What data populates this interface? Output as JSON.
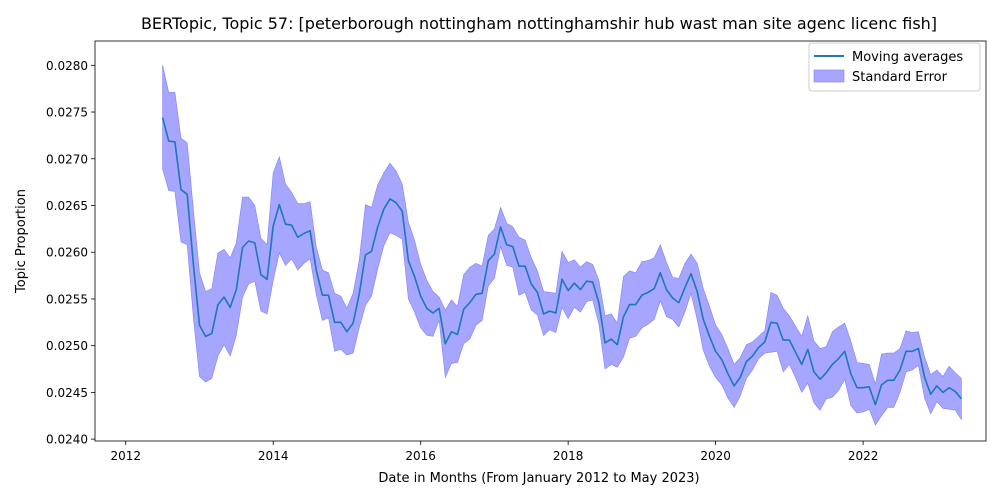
{
  "chart_data": {
    "type": "line",
    "title": "BERTopic, Topic 57: [peterborough nottingham nottinghamshir hub wast man site agenc licenc fish]",
    "xlabel": "Date in Months (From January 2012 to May 2023)",
    "ylabel": "Topic Proportion",
    "xlim": [
      "2011-08",
      "2023-09"
    ],
    "ylim": [
      0.02398,
      0.02826
    ],
    "x_ticks": [
      "2012",
      "2014",
      "2016",
      "2018",
      "2020",
      "2022"
    ],
    "y_ticks": [
      "0.0240",
      "0.0245",
      "0.0250",
      "0.0255",
      "0.0260",
      "0.0265",
      "0.0270",
      "0.0275",
      "0.0280"
    ],
    "legend": {
      "placement": "top-right",
      "entries": [
        "Moving averages",
        "Standard Error"
      ]
    },
    "colors": {
      "line": "#1f77b4",
      "band": "#a6a6ff",
      "band_stroke": "#8080ff"
    },
    "grid": false,
    "series": [
      {
        "name": "Moving averages",
        "x": [
          "2012-07",
          "2012-08",
          "2012-09",
          "2012-10",
          "2012-11",
          "2012-12",
          "2013-01",
          "2013-02",
          "2013-03",
          "2013-04",
          "2013-05",
          "2013-06",
          "2013-07",
          "2013-08",
          "2013-09",
          "2013-10",
          "2013-11",
          "2013-12",
          "2014-01",
          "2014-02",
          "2014-03",
          "2014-04",
          "2014-05",
          "2014-06",
          "2014-07",
          "2014-08",
          "2014-09",
          "2014-10",
          "2014-11",
          "2014-12",
          "2015-01",
          "2015-02",
          "2015-03",
          "2015-04",
          "2015-05",
          "2015-06",
          "2015-07",
          "2015-08",
          "2015-09",
          "2015-10",
          "2015-11",
          "2015-12",
          "2016-01",
          "2016-02",
          "2016-03",
          "2016-04",
          "2016-05",
          "2016-06",
          "2016-07",
          "2016-08",
          "2016-09",
          "2016-10",
          "2016-11",
          "2016-12",
          "2017-01",
          "2017-02",
          "2017-03",
          "2017-04",
          "2017-05",
          "2017-06",
          "2017-07",
          "2017-08",
          "2017-09",
          "2017-10",
          "2017-11",
          "2017-12",
          "2018-01",
          "2018-02",
          "2018-03",
          "2018-04",
          "2018-05",
          "2018-06",
          "2018-07",
          "2018-08",
          "2018-09",
          "2018-10",
          "2018-11",
          "2018-12",
          "2019-01",
          "2019-02",
          "2019-03",
          "2019-04",
          "2019-05",
          "2019-06",
          "2019-07",
          "2019-08",
          "2019-09",
          "2019-10",
          "2019-11",
          "2019-12",
          "2020-01",
          "2020-02",
          "2020-03",
          "2020-04",
          "2020-05",
          "2020-06",
          "2020-07",
          "2020-08",
          "2020-09",
          "2020-10",
          "2020-11",
          "2020-12",
          "2021-01",
          "2021-02",
          "2021-03",
          "2021-04",
          "2021-05",
          "2021-06",
          "2021-07",
          "2021-08",
          "2021-09",
          "2021-10",
          "2021-11",
          "2021-12",
          "2022-01",
          "2022-02",
          "2022-03",
          "2022-04",
          "2022-05",
          "2022-06",
          "2022-07",
          "2022-08",
          "2022-09",
          "2022-10",
          "2022-11",
          "2022-12",
          "2023-01",
          "2023-02",
          "2023-03",
          "2023-04",
          "2023-05"
        ],
        "values": [
          0.02744,
          0.02719,
          0.02718,
          0.02667,
          0.02662,
          0.02588,
          0.02522,
          0.0251,
          0.02513,
          0.02544,
          0.02552,
          0.02541,
          0.0256,
          0.02605,
          0.02612,
          0.0261,
          0.02576,
          0.02571,
          0.02628,
          0.02651,
          0.0263,
          0.02629,
          0.02616,
          0.0262,
          0.02623,
          0.02581,
          0.02554,
          0.02554,
          0.02525,
          0.02525,
          0.02515,
          0.02524,
          0.02555,
          0.02597,
          0.02601,
          0.02627,
          0.02646,
          0.02657,
          0.02653,
          0.02644,
          0.02591,
          0.02574,
          0.02553,
          0.0254,
          0.02535,
          0.0254,
          0.02502,
          0.02515,
          0.02512,
          0.02539,
          0.02546,
          0.02555,
          0.02556,
          0.02591,
          0.02598,
          0.02627,
          0.02608,
          0.02606,
          0.02585,
          0.02585,
          0.02566,
          0.02557,
          0.02534,
          0.02537,
          0.02535,
          0.02571,
          0.02559,
          0.02567,
          0.0256,
          0.02569,
          0.02568,
          0.02546,
          0.02503,
          0.02507,
          0.02501,
          0.02531,
          0.02544,
          0.02544,
          0.02554,
          0.02557,
          0.02561,
          0.02578,
          0.0256,
          0.02551,
          0.02546,
          0.02562,
          0.02577,
          0.02558,
          0.02528,
          0.0251,
          0.02494,
          0.02485,
          0.0247,
          0.02457,
          0.02466,
          0.02483,
          0.02489,
          0.02498,
          0.02504,
          0.02525,
          0.02524,
          0.02506,
          0.02506,
          0.02493,
          0.0248,
          0.02496,
          0.02472,
          0.02464,
          0.02471,
          0.0248,
          0.02486,
          0.02494,
          0.0247,
          0.02455,
          0.02455,
          0.02456,
          0.02437,
          0.02458,
          0.02463,
          0.02463,
          0.02474,
          0.02494,
          0.02494,
          0.02497,
          0.02466,
          0.02448,
          0.02457,
          0.0245,
          0.02455,
          0.02451,
          0.02443
        ],
        "se_upper": [
          0.028,
          0.02771,
          0.02771,
          0.02722,
          0.02717,
          0.02646,
          0.02578,
          0.02558,
          0.02561,
          0.02599,
          0.02603,
          0.02594,
          0.0261,
          0.02659,
          0.02659,
          0.0265,
          0.02615,
          0.02608,
          0.02685,
          0.02702,
          0.02673,
          0.02664,
          0.02652,
          0.02652,
          0.02654,
          0.02606,
          0.02581,
          0.02578,
          0.02556,
          0.02553,
          0.0254,
          0.02556,
          0.02591,
          0.02651,
          0.02648,
          0.02672,
          0.02685,
          0.02695,
          0.02687,
          0.02673,
          0.02632,
          0.02613,
          0.02587,
          0.0257,
          0.02558,
          0.02552,
          0.02538,
          0.02549,
          0.02542,
          0.02576,
          0.02584,
          0.02588,
          0.02585,
          0.02618,
          0.02625,
          0.02648,
          0.02631,
          0.02627,
          0.02616,
          0.02613,
          0.02594,
          0.0258,
          0.02558,
          0.02557,
          0.02556,
          0.02601,
          0.02589,
          0.02592,
          0.02584,
          0.0259,
          0.02587,
          0.0257,
          0.02532,
          0.02534,
          0.02524,
          0.02574,
          0.0258,
          0.02578,
          0.0259,
          0.02591,
          0.02594,
          0.02608,
          0.02589,
          0.02573,
          0.02572,
          0.02588,
          0.02598,
          0.02588,
          0.02561,
          0.02542,
          0.02522,
          0.02512,
          0.02497,
          0.0248,
          0.02487,
          0.02501,
          0.02504,
          0.0251,
          0.02516,
          0.02557,
          0.02554,
          0.0254,
          0.02532,
          0.02521,
          0.0251,
          0.02532,
          0.02505,
          0.02497,
          0.02499,
          0.02515,
          0.0252,
          0.02524,
          0.02505,
          0.02482,
          0.02481,
          0.0248,
          0.02459,
          0.02491,
          0.02492,
          0.02492,
          0.02497,
          0.02516,
          0.02514,
          0.02515,
          0.02488,
          0.02469,
          0.02474,
          0.02467,
          0.02478,
          0.02471,
          0.02465
        ],
        "se_lower": [
          0.02689,
          0.02666,
          0.02665,
          0.02611,
          0.02608,
          0.02531,
          0.02467,
          0.02461,
          0.02465,
          0.02489,
          0.02501,
          0.02489,
          0.02511,
          0.02552,
          0.02566,
          0.02569,
          0.02537,
          0.02534,
          0.0257,
          0.02599,
          0.02586,
          0.02593,
          0.02581,
          0.02588,
          0.02593,
          0.02555,
          0.02527,
          0.0253,
          0.02494,
          0.02496,
          0.0249,
          0.02492,
          0.02519,
          0.02543,
          0.02553,
          0.02582,
          0.02607,
          0.02621,
          0.02618,
          0.02614,
          0.0255,
          0.02536,
          0.02519,
          0.02511,
          0.0251,
          0.02527,
          0.02466,
          0.02481,
          0.02482,
          0.02502,
          0.02507,
          0.02522,
          0.02527,
          0.02564,
          0.02572,
          0.02606,
          0.02586,
          0.02584,
          0.02554,
          0.02557,
          0.02538,
          0.02533,
          0.02511,
          0.02517,
          0.02514,
          0.02541,
          0.02529,
          0.02541,
          0.02536,
          0.02547,
          0.02549,
          0.02523,
          0.02475,
          0.0248,
          0.02477,
          0.02488,
          0.02508,
          0.0251,
          0.02519,
          0.02523,
          0.02528,
          0.02548,
          0.02531,
          0.02528,
          0.0252,
          0.02536,
          0.02556,
          0.02528,
          0.02495,
          0.02478,
          0.02466,
          0.02458,
          0.02444,
          0.02434,
          0.02446,
          0.02465,
          0.02474,
          0.02486,
          0.02492,
          0.02493,
          0.02494,
          0.02472,
          0.0248,
          0.02466,
          0.0245,
          0.0246,
          0.02439,
          0.02431,
          0.02443,
          0.02445,
          0.02452,
          0.02464,
          0.02436,
          0.02428,
          0.02429,
          0.02432,
          0.02415,
          0.02425,
          0.02434,
          0.02434,
          0.0245,
          0.02472,
          0.02474,
          0.02479,
          0.02444,
          0.02427,
          0.0244,
          0.02433,
          0.02432,
          0.02431,
          0.02421
        ]
      }
    ]
  }
}
